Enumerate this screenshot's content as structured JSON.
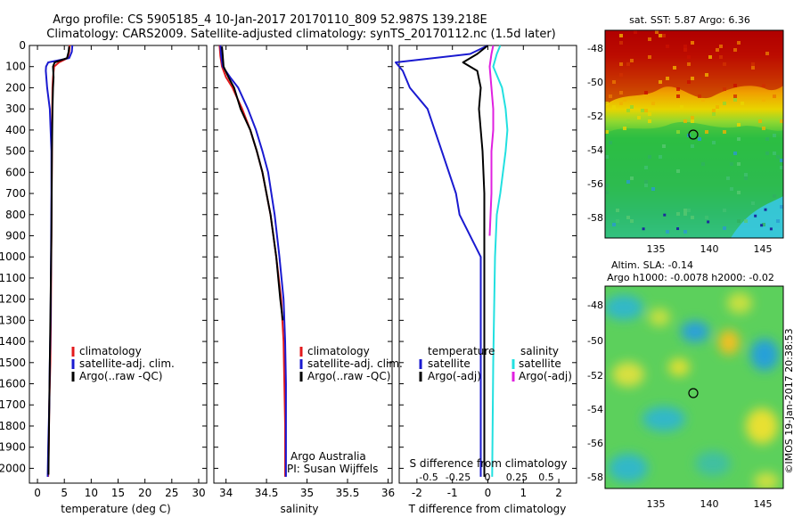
{
  "header": {
    "line1": "Argo profile: CS 5905185_4 10-Jan-2017 20170110_809 52.987S 139.218E",
    "line2": "Climatology: CARS2009. Satellite-adjusted climatology: synTS_20170112.nc (1.5d later)"
  },
  "colors": {
    "climatology": "#e31a1c",
    "satellite": "#1a1ad0",
    "argo": "#000000",
    "sal_satellite": "#22e0e0",
    "sal_argo": "#e020e0"
  },
  "chart_data": [
    {
      "id": "temperature",
      "type": "line",
      "xlabel": "temperature (deg C)",
      "xticks": [
        0,
        5,
        10,
        15,
        20,
        25,
        30
      ],
      "xlim": [
        -1.5,
        31.5
      ],
      "ylim": [
        0,
        2070
      ],
      "yticks": [
        0,
        100,
        200,
        300,
        400,
        500,
        600,
        700,
        800,
        900,
        1000,
        1100,
        1200,
        1300,
        1400,
        1500,
        1600,
        1700,
        1800,
        1900,
        2000
      ],
      "legend": [
        "climatology",
        "satellite-adj. clim.",
        "Argo(..raw -QC)"
      ],
      "series": [
        {
          "name": "climatology",
          "color": "climatology",
          "x": [
            6.0,
            5.9,
            5.6,
            4.0,
            3.1,
            2.9,
            2.8,
            2.75,
            2.7,
            2.65,
            2.6,
            2.55,
            2.5,
            2.4,
            2.2,
            2.1,
            2.0
          ],
          "y": [
            0,
            30,
            60,
            80,
            100,
            150,
            200,
            300,
            500,
            700,
            900,
            1100,
            1300,
            1500,
            1700,
            1900,
            2040
          ]
        },
        {
          "name": "satellite-adj. clim.",
          "color": "satellite",
          "x": [
            6.5,
            6.4,
            5.9,
            2.0,
            1.6,
            1.55,
            1.8,
            2.3,
            2.6,
            2.6,
            2.55,
            2.5,
            2.45,
            2.3,
            2.2,
            2.0,
            1.9
          ],
          "y": [
            0,
            30,
            60,
            80,
            100,
            120,
            200,
            300,
            500,
            700,
            900,
            1100,
            1300,
            1500,
            1700,
            1900,
            2040
          ]
        },
        {
          "name": "Argo(..raw -QC)",
          "color": "argo",
          "x": [
            5.9,
            5.8,
            5.5,
            3.2,
            2.9,
            3.0,
            2.9,
            2.8,
            2.7,
            2.65,
            2.6,
            2.5,
            2.4,
            2.3,
            2.2,
            2.1,
            2.05
          ],
          "y": [
            5,
            30,
            60,
            80,
            100,
            150,
            200,
            300,
            500,
            700,
            900,
            1100,
            1300,
            1500,
            1700,
            1900,
            2030
          ]
        }
      ]
    },
    {
      "id": "salinity",
      "type": "line",
      "xlabel": "salinity",
      "xticks": [
        34,
        34.5,
        35,
        35.5,
        36
      ],
      "xticklabels": [
        "34",
        "34.5",
        "35",
        "35.5",
        "36"
      ],
      "xlim": [
        33.85,
        36.05
      ],
      "ylim": [
        0,
        2070
      ],
      "legend": [
        "climatology",
        "satellite-adj. clim.",
        "Argo(..raw -QC)"
      ],
      "annotation": [
        "Argo Australia",
        "PI: Susan Wijffels"
      ],
      "series": [
        {
          "name": "climatology",
          "color": "climatology",
          "x": [
            33.92,
            33.93,
            33.95,
            34.0,
            34.08,
            34.2,
            34.3,
            34.38,
            34.45,
            34.55,
            34.62,
            34.68,
            34.71,
            34.72,
            34.73,
            34.73,
            34.73
          ],
          "y": [
            0,
            50,
            100,
            150,
            200,
            300,
            400,
            500,
            600,
            800,
            1000,
            1200,
            1400,
            1600,
            1800,
            1900,
            2040
          ]
        },
        {
          "name": "satellite-adj. clim.",
          "color": "satellite",
          "x": [
            33.93,
            33.94,
            33.96,
            34.05,
            34.15,
            34.27,
            34.37,
            34.45,
            34.52,
            34.6,
            34.66,
            34.71,
            34.73,
            34.74,
            34.74,
            34.74,
            34.74
          ],
          "y": [
            0,
            50,
            100,
            150,
            200,
            300,
            400,
            500,
            600,
            800,
            1000,
            1200,
            1400,
            1600,
            1800,
            1900,
            2040
          ]
        },
        {
          "name": "Argo(..raw -QC)",
          "color": "argo",
          "x": [
            33.95,
            33.96,
            33.97,
            34.03,
            34.1,
            34.18,
            34.3,
            34.38,
            34.45,
            34.55,
            34.62,
            34.67,
            34.7
          ],
          "y": [
            5,
            50,
            100,
            150,
            200,
            300,
            400,
            500,
            600,
            800,
            1000,
            1200,
            1300
          ]
        }
      ]
    },
    {
      "id": "difference",
      "type": "line",
      "xlabel": "T difference from climatology",
      "xticks": [
        -2,
        -1,
        0,
        1,
        2
      ],
      "xlim": [
        -2.5,
        2.5
      ],
      "ylim": [
        0,
        2070
      ],
      "top_axis_label": "S difference from climatology",
      "top_ticks": [
        "-0.5",
        "-0.25",
        "0",
        "0.25",
        "0.5"
      ],
      "legend_left_title": "temperature",
      "legend_left": [
        "satellite",
        "Argo(-adj)"
      ],
      "legend_right_title": "salinity",
      "legend_right": [
        "satellite",
        "Argo(-adj)"
      ],
      "series": [
        {
          "name": "temperature satellite",
          "color": "satellite",
          "x": [
            0.0,
            -0.5,
            -2.6,
            -2.4,
            -2.2,
            -1.7,
            -1.5,
            -1.3,
            -0.9,
            -0.8,
            -0.2,
            -0.2,
            -0.2
          ],
          "y": [
            0,
            40,
            80,
            120,
            200,
            300,
            400,
            500,
            700,
            800,
            1000,
            1500,
            2040
          ]
        },
        {
          "name": "temperature Argo(-adj)",
          "color": "argo",
          "x": [
            0.0,
            -0.3,
            -0.7,
            -0.3,
            -0.2,
            -0.25,
            -0.2,
            -0.15,
            -0.1,
            -0.1,
            -0.1,
            -0.1
          ],
          "y": [
            0,
            40,
            80,
            120,
            200,
            300,
            400,
            500,
            700,
            900,
            1500,
            2040
          ]
        },
        {
          "name": "salinity satellite",
          "color": "sal_satellite",
          "x": [
            0.35,
            0.25,
            0.15,
            0.4,
            0.5,
            0.55,
            0.5,
            0.35,
            0.25,
            0.2,
            0.15,
            0.12
          ],
          "y": [
            0,
            40,
            100,
            200,
            300,
            400,
            500,
            700,
            800,
            1000,
            1500,
            2040
          ]
        },
        {
          "name": "salinity Argo(-adj)",
          "color": "sal_argo",
          "x": [
            0.15,
            0.1,
            0.05,
            0.1,
            0.15,
            0.15,
            0.1,
            0.1,
            0.05
          ],
          "y": [
            0,
            40,
            100,
            200,
            300,
            400,
            500,
            700,
            900
          ]
        }
      ]
    }
  ],
  "maps": {
    "sst": {
      "title": "sat. SST: 5.87  Argo: 6.36",
      "xticks": [
        "135",
        "140",
        "145"
      ],
      "yticks": [
        "-48",
        "-50",
        "-52",
        "-54",
        "-56",
        "-58"
      ]
    },
    "sla": {
      "title1": "Altim. SLA: -0.14",
      "title2": "Argo h1000: -0.0078 h2000: -0.02",
      "xticks": [
        "135",
        "140",
        "145"
      ],
      "yticks": [
        "-48",
        "-50",
        "-52",
        "-54",
        "-56",
        "-58"
      ]
    }
  },
  "credit": "©IMOS 19-Jan-2017 20:38:53"
}
